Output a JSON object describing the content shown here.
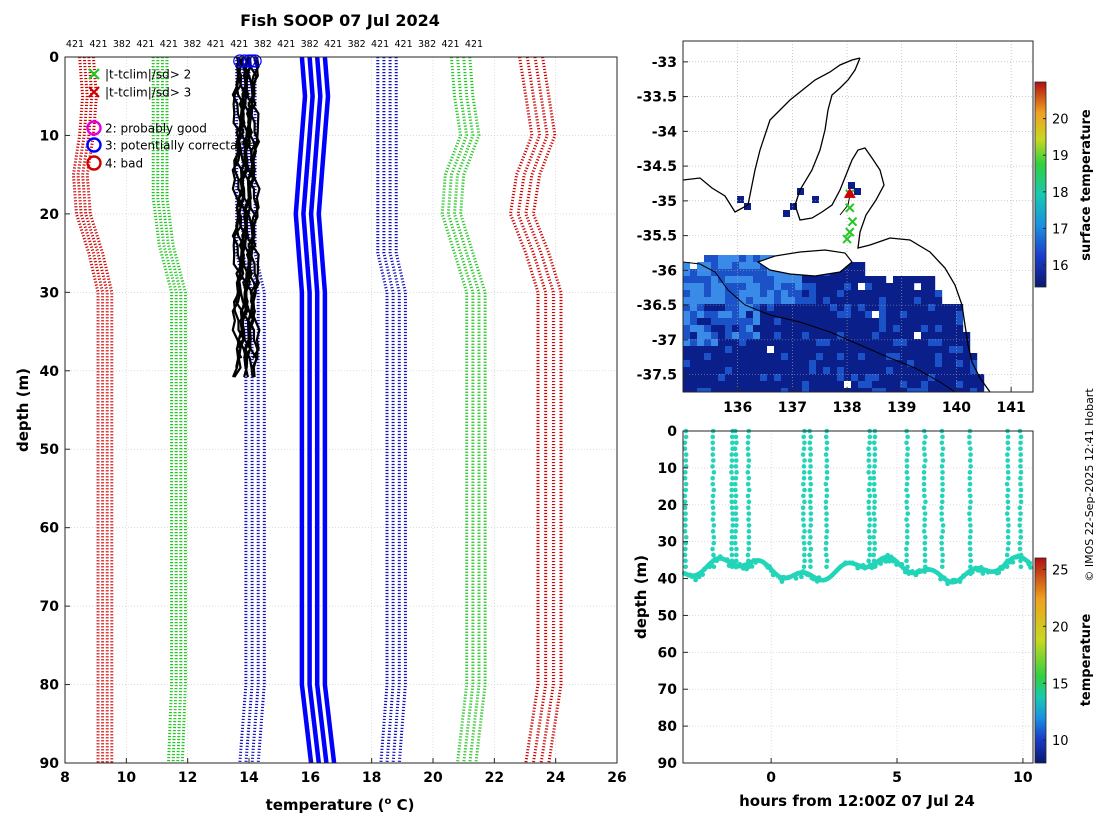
{
  "title": "Fish SOOP 07 Jul 2024",
  "copyright": "© IMOS 22-Sep-2025 12:41 Hobart",
  "colors": {
    "red": "#d00000",
    "green": "#22c822",
    "blue": "#0000ff",
    "dark_blue": "#1010c0",
    "black": "#000000",
    "magenta": "#e000e0",
    "teal": "#22d4b8",
    "grid": "#c8c8c8",
    "ocean_dark": "#0a1f8a",
    "ocean_mid": "#1c52c8",
    "ocean_light": "#3a8ae8"
  },
  "top_labels": [
    "421",
    "421",
    "382",
    "421",
    "421",
    "382",
    "421",
    "421",
    "382",
    "421",
    "382",
    "421",
    "382",
    "421",
    "421",
    "382",
    "421",
    "421"
  ],
  "legend": {
    "items": [
      {
        "symbol": "x",
        "color": "#22c822",
        "text": "|t-tclim|/sd> 2"
      },
      {
        "symbol": "x",
        "color": "#d00000",
        "text": "|t-tclim|/sd> 3"
      },
      {
        "symbol": "o",
        "color": "#e000e0",
        "text": "2: probably good"
      },
      {
        "symbol": "o",
        "color": "#0000ff",
        "text": "3: potentially correctable"
      },
      {
        "symbol": "o",
        "color": "#d00000",
        "text": "4: bad"
      }
    ]
  },
  "chart_data": [
    {
      "type": "line",
      "name": "temperature_profiles",
      "title": "Fish SOOP 07 Jul 2024",
      "xlabel": "temperature (",
      "xlabel_sup": "o",
      "xlabel_end": " C)",
      "ylabel": "depth (m)",
      "xlim": [
        8,
        26
      ],
      "ylim": [
        90,
        0
      ],
      "xticks": [
        8,
        10,
        12,
        14,
        16,
        18,
        20,
        22,
        24,
        26
      ],
      "yticks": [
        0,
        10,
        20,
        30,
        40,
        50,
        60,
        70,
        80,
        90
      ],
      "climatology_series": [
        {
          "name": "clim-red-1",
          "color": "#d00000",
          "style": "dotted",
          "copies": 4,
          "spread": 0.15,
          "points": [
            [
              8.7,
              0
            ],
            [
              8.8,
              5
            ],
            [
              8.7,
              10
            ],
            [
              8.5,
              15
            ],
            [
              8.6,
              20
            ],
            [
              9.0,
              25
            ],
            [
              9.3,
              30
            ],
            [
              9.3,
              80
            ],
            [
              9.3,
              90
            ]
          ]
        },
        {
          "name": "clim-green-1",
          "color": "#22c822",
          "style": "dotted",
          "copies": 4,
          "spread": 0.15,
          "points": [
            [
              11.1,
              0
            ],
            [
              11.1,
              10
            ],
            [
              11.1,
              18
            ],
            [
              11.3,
              24
            ],
            [
              11.7,
              30
            ],
            [
              11.7,
              80
            ],
            [
              11.6,
              90
            ]
          ]
        },
        {
          "name": "clim-blue-dotted-1",
          "color": "#1010c0",
          "style": "dotted",
          "copies": 4,
          "spread": 0.2,
          "points": [
            [
              13.9,
              0
            ],
            [
              13.9,
              10
            ],
            [
              13.9,
              25
            ],
            [
              14.2,
              30
            ],
            [
              14.2,
              80
            ],
            [
              14.0,
              90
            ]
          ]
        },
        {
          "name": "clim-blue-solid",
          "color": "#0000ff",
          "style": "solid",
          "copies": 4,
          "spread": 0.25,
          "points": [
            [
              16.1,
              0
            ],
            [
              16.2,
              5
            ],
            [
              16.1,
              10
            ],
            [
              16.0,
              15
            ],
            [
              15.9,
              20
            ],
            [
              16.0,
              25
            ],
            [
              16.1,
              30
            ],
            [
              16.1,
              80
            ],
            [
              16.4,
              90
            ]
          ]
        },
        {
          "name": "clim-blue-dotted-2",
          "color": "#1010c0",
          "style": "dotted",
          "copies": 4,
          "spread": 0.2,
          "points": [
            [
              18.5,
              0
            ],
            [
              18.5,
              10
            ],
            [
              18.5,
              20
            ],
            [
              18.5,
              25
            ],
            [
              18.8,
              30
            ],
            [
              18.8,
              80
            ],
            [
              18.6,
              90
            ]
          ]
        },
        {
          "name": "clim-green-2",
          "color": "#22c822",
          "style": "dotted",
          "copies": 4,
          "spread": 0.2,
          "points": [
            [
              20.9,
              0
            ],
            [
              21.0,
              5
            ],
            [
              21.2,
              10
            ],
            [
              20.7,
              15
            ],
            [
              20.6,
              20
            ],
            [
              21.0,
              25
            ],
            [
              21.4,
              30
            ],
            [
              21.4,
              80
            ],
            [
              21.1,
              90
            ]
          ]
        },
        {
          "name": "clim-red-2",
          "color": "#d00000",
          "style": "dotted",
          "copies": 4,
          "spread": 0.25,
          "points": [
            [
              23.2,
              0
            ],
            [
              23.4,
              5
            ],
            [
              23.6,
              10
            ],
            [
              23.1,
              15
            ],
            [
              22.9,
              20
            ],
            [
              23.4,
              25
            ],
            [
              23.8,
              30
            ],
            [
              23.8,
              80
            ],
            [
              23.4,
              90
            ]
          ]
        }
      ],
      "observed_profiles": {
        "color": "#000000",
        "depth_range": [
          0,
          42
        ],
        "approx_temperature": [
          13.6,
          14.2
        ],
        "count": 12
      },
      "qc_flag_circles": {
        "color": "#0000ff",
        "depth": 0,
        "temperatures": [
          13.7,
          13.85,
          14.0,
          14.1,
          14.2
        ]
      }
    },
    {
      "type": "map",
      "name": "surface_temperature_map",
      "xlim": [
        135.0,
        141.4
      ],
      "ylim": [
        -37.75,
        -32.7
      ],
      "xticks": [
        136,
        137,
        138,
        139,
        140,
        141
      ],
      "yticks": [
        -33,
        -33.5,
        -34,
        -34.5,
        -35,
        -35.5,
        -36,
        -36.5,
        -37,
        -37.5
      ],
      "colorbar_label": "surface temperature",
      "colorbar_range": [
        15.4,
        21.0
      ],
      "colorbar_ticks": [
        16,
        17,
        18,
        19,
        20
      ],
      "track": {
        "lon": [
          138.05,
          138.05,
          138.1,
          138.05,
          138.0
        ],
        "lat": [
          -34.9,
          -35.1,
          -35.3,
          -35.45,
          -35.55
        ]
      }
    },
    {
      "type": "scatter",
      "name": "depth_time",
      "xlabel": "hours from 12:00Z 07 Jul 24",
      "ylabel": "depth (m)",
      "xlim": [
        -3.5,
        10.4
      ],
      "ylim": [
        90,
        0
      ],
      "xticks": [
        0,
        5,
        10
      ],
      "yticks": [
        0,
        10,
        20,
        30,
        40,
        50,
        60,
        70,
        80,
        90
      ],
      "colorbar_label": "temperature",
      "colorbar_range": [
        8,
        26
      ],
      "colorbar_ticks": [
        10,
        15,
        20,
        25
      ],
      "dive_times": [
        -3.4,
        -2.3,
        -1.55,
        -1.4,
        -0.9,
        1.3,
        1.55,
        2.2,
        3.9,
        4.1,
        5.4,
        6.1,
        6.8,
        7.9,
        9.4,
        9.9
      ],
      "bottom_depth_range": [
        35,
        42
      ]
    }
  ]
}
